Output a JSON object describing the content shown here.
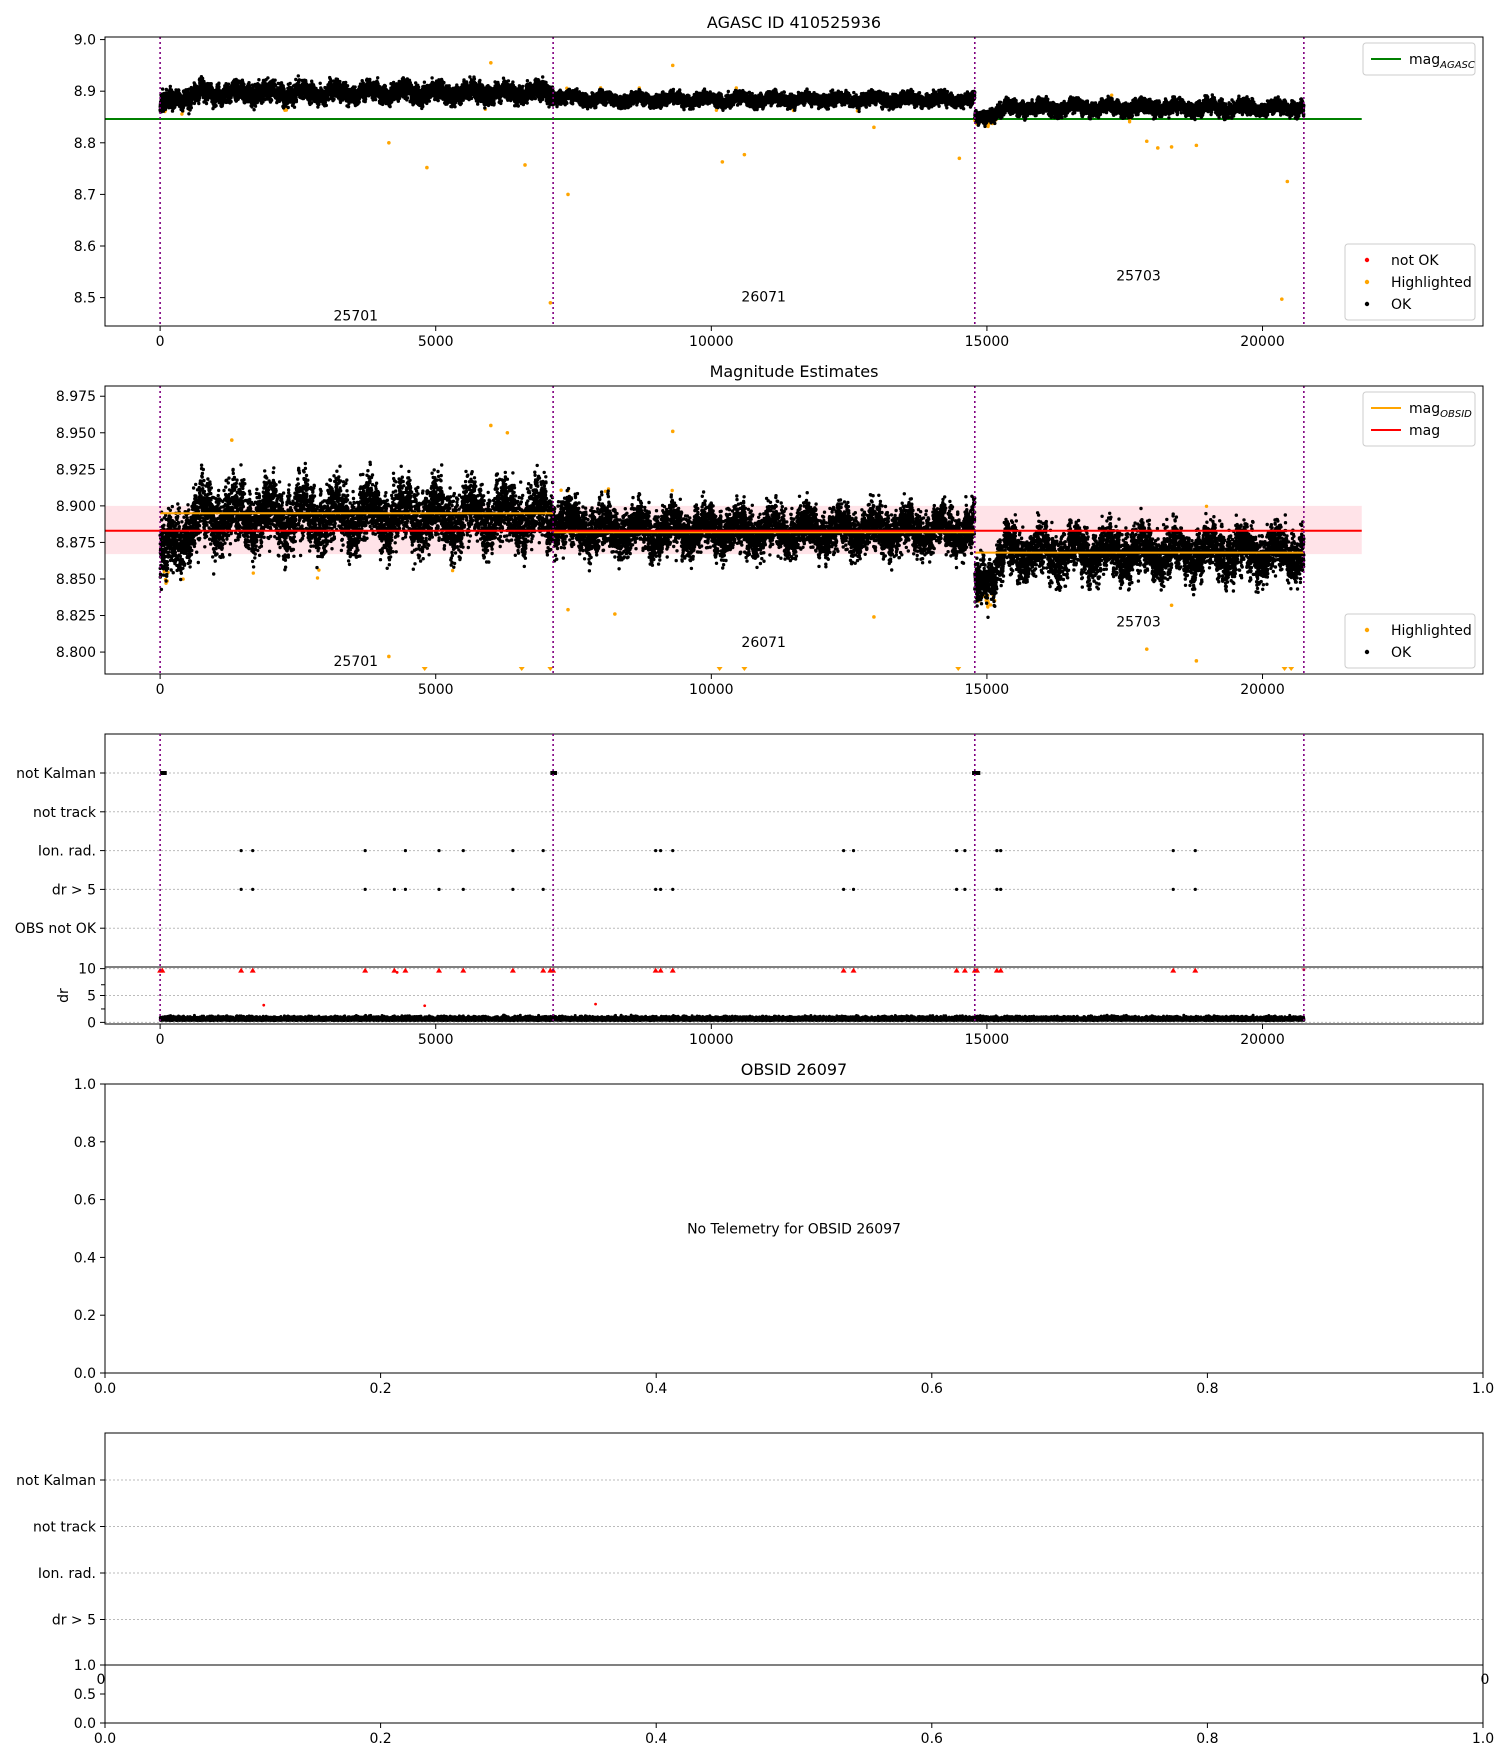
{
  "figure": {
    "title": "AGASC ID 410525936"
  },
  "colors": {
    "ok": "#000000",
    "highlighted": "#ffa500",
    "not_ok": "#ff0000",
    "agasc_line": "#008000",
    "obsid_line": "#ffa500",
    "mag_line": "#ff0000",
    "mag_band": "#ffc0cb",
    "boundary": "#800080"
  },
  "chart_data": [
    {
      "id": "panel1",
      "type": "scatter",
      "title": "AGASC ID 410525936",
      "xlim": [
        -1000,
        24000
      ],
      "ylim": [
        8.445,
        9.005
      ],
      "xticks": [
        0,
        5000,
        10000,
        15000,
        20000
      ],
      "xtick_labels": [
        "0",
        "5000",
        "10000",
        "15000",
        "20000"
      ],
      "yticks": [
        8.5,
        8.6,
        8.7,
        8.8,
        8.9,
        9.0
      ],
      "ytick_labels": [
        "8.5",
        "8.6",
        "8.7",
        "8.8",
        "8.9",
        "9.0"
      ],
      "boundaries": [
        0,
        7130,
        14780,
        20750
      ],
      "obsid_labels": [
        {
          "text": "25701",
          "x": 3550,
          "y": 8.465
        },
        {
          "text": "26071",
          "x": 10950,
          "y": 8.502
        },
        {
          "text": "25703",
          "x": 17750,
          "y": 8.543
        }
      ],
      "agasc_mag": 8.846,
      "segments": [
        {
          "x0": 0,
          "x1": 7130,
          "mean": 8.897,
          "start": 8.872,
          "noise": 0.012
        },
        {
          "x0": 7130,
          "x1": 14780,
          "mean": 8.884,
          "start": 8.89,
          "noise": 0.008
        },
        {
          "x0": 14780,
          "x1": 20750,
          "mean": 8.868,
          "start": 8.842,
          "noise": 0.009
        }
      ],
      "outliers": [
        [
          4150,
          8.8
        ],
        [
          4840,
          8.752
        ],
        [
          6620,
          8.757
        ],
        [
          7400,
          8.7
        ],
        [
          10200,
          8.763
        ],
        [
          10600,
          8.777
        ],
        [
          12950,
          8.83
        ],
        [
          14500,
          8.77
        ],
        [
          17900,
          8.803
        ],
        [
          18100,
          8.79
        ],
        [
          18350,
          8.792
        ],
        [
          18800,
          8.795
        ],
        [
          20450,
          8.725
        ],
        [
          20350,
          8.497
        ],
        [
          7080,
          8.49
        ],
        [
          9300,
          8.95
        ],
        [
          6000,
          8.955
        ]
      ],
      "legends": [
        {
          "position": "top-right",
          "entries": [
            {
              "label": "mag",
              "sub": "AGASC",
              "kind": "line",
              "color": "#008000"
            }
          ]
        },
        {
          "position": "bottom-right",
          "entries": [
            {
              "label": "not OK",
              "kind": "dot",
              "color": "#ff0000"
            },
            {
              "label": "Highlighted",
              "kind": "dot",
              "color": "#ffa500"
            },
            {
              "label": "OK",
              "kind": "dot",
              "color": "#000000"
            }
          ]
        }
      ]
    },
    {
      "id": "panel2",
      "type": "scatter",
      "title": "Magnitude Estimates",
      "xlim": [
        -1000,
        24000
      ],
      "ylim": [
        8.785,
        8.982
      ],
      "xticks": [
        0,
        5000,
        10000,
        15000,
        20000
      ],
      "xtick_labels": [
        "0",
        "5000",
        "10000",
        "15000",
        "20000"
      ],
      "yticks": [
        8.8,
        8.825,
        8.85,
        8.875,
        8.9,
        8.925,
        8.95,
        8.975
      ],
      "ytick_labels": [
        "8.800",
        "8.825",
        "8.850",
        "8.875",
        "8.900",
        "8.925",
        "8.950",
        "8.975"
      ],
      "boundaries": [
        0,
        7130,
        14780,
        20750
      ],
      "obsid_labels": [
        {
          "text": "25701",
          "x": 3550,
          "y": 8.794
        },
        {
          "text": "26071",
          "x": 10950,
          "y": 8.807
        },
        {
          "text": "25703",
          "x": 17750,
          "y": 8.821
        }
      ],
      "mag": 8.883,
      "mag_band": [
        8.867,
        8.9
      ],
      "obsid_mags": [
        {
          "x0": 0,
          "x1": 7130,
          "mag": 8.895
        },
        {
          "x0": 7130,
          "x1": 14780,
          "mag": 8.882
        },
        {
          "x0": 14780,
          "x1": 20750,
          "mag": 8.868
        }
      ],
      "segments": [
        {
          "x0": 0,
          "x1": 7130,
          "mean": 8.893,
          "start": 8.862,
          "noise": 0.014
        },
        {
          "x0": 7130,
          "x1": 14780,
          "mean": 8.883,
          "start": 8.89,
          "noise": 0.01
        },
        {
          "x0": 14780,
          "x1": 20750,
          "mean": 8.868,
          "start": 8.84,
          "noise": 0.011
        }
      ],
      "outliers": [
        [
          4150,
          8.797
        ],
        [
          7400,
          8.829
        ],
        [
          8250,
          8.826
        ],
        [
          12950,
          8.824
        ],
        [
          17900,
          8.802
        ],
        [
          18350,
          8.832
        ],
        [
          18800,
          8.794
        ],
        [
          9300,
          8.951
        ],
        [
          6000,
          8.955
        ],
        [
          6300,
          8.95
        ],
        [
          1300,
          8.945
        ]
      ],
      "clipped_x": [
        4800,
        6560,
        7080,
        10150,
        10600,
        14480,
        20400,
        20520
      ],
      "legends": [
        {
          "position": "top-right",
          "entries": [
            {
              "label": "mag",
              "sub": "OBSID",
              "kind": "line",
              "color": "#ffa500"
            },
            {
              "label": "mag",
              "kind": "line",
              "color": "#ff0000"
            }
          ]
        },
        {
          "position": "bottom-right",
          "entries": [
            {
              "label": "Highlighted",
              "kind": "dot",
              "color": "#ffa500"
            },
            {
              "label": "OK",
              "kind": "dot",
              "color": "#000000"
            }
          ]
        }
      ]
    },
    {
      "id": "panel3",
      "type": "scatter",
      "xlim": [
        -1000,
        24000
      ],
      "categories": [
        "not Kalman",
        "not track",
        "Ion. rad.",
        "dr > 5",
        "OBS not OK"
      ],
      "boundaries": [
        0,
        7130,
        14780,
        20750
      ],
      "flags": {
        "not Kalman": [
          [
            0,
            120
          ],
          [
            7080,
            7200
          ],
          [
            14730,
            14880
          ]
        ],
        "not track": [],
        "Ion. rad.": [
          1470,
          1680,
          3720,
          4450,
          5060,
          5500,
          6400,
          6950,
          8990,
          9080,
          9300,
          12400,
          12580,
          14450,
          14600,
          15180,
          15250,
          18380,
          18780
        ],
        "dr > 5": [
          1470,
          1680,
          3720,
          4250,
          4450,
          5060,
          5500,
          6400,
          6950,
          8990,
          9080,
          9300,
          12400,
          12580,
          14450,
          14600,
          15180,
          15250,
          18380,
          18780
        ],
        "OBS not OK": []
      }
    },
    {
      "id": "panel3dr",
      "type": "scatter",
      "ylabel": "dr",
      "xlim": [
        -1000,
        24000
      ],
      "ylim": [
        -0.3,
        10.3
      ],
      "xticks": [
        0,
        5000,
        10000,
        15000,
        20000
      ],
      "xtick_labels": [
        "0",
        "5000",
        "10000",
        "15000",
        "20000"
      ],
      "yticks": [
        0,
        5,
        10
      ],
      "ytick_labels": [
        "0",
        "5",
        "10"
      ],
      "boundaries": [
        0,
        7130,
        14780,
        20750
      ],
      "clipped_x": [
        0,
        40,
        1470,
        1680,
        3720,
        4250,
        4450,
        5060,
        5500,
        6400,
        6950,
        7080,
        7130,
        8990,
        9080,
        9300,
        12400,
        12580,
        14450,
        14600,
        14780,
        14820,
        15180,
        15250,
        18380,
        18780
      ],
      "outliers": [
        [
          1880,
          3.2
        ],
        [
          4800,
          3.1
        ],
        [
          7900,
          3.4
        ],
        [
          4300,
          9.3
        ],
        [
          20750,
          9.8
        ]
      ]
    },
    {
      "id": "panel4",
      "type": "scatter",
      "title": "OBSID 26097",
      "xlim": [
        0,
        1
      ],
      "ylim": [
        0,
        1
      ],
      "xticks": [
        0,
        0.2,
        0.4,
        0.6,
        0.8,
        1.0
      ],
      "xtick_labels": [
        "0.0",
        "0.2",
        "0.4",
        "0.6",
        "0.8",
        "1.0"
      ],
      "yticks": [
        0,
        0.2,
        0.4,
        0.6,
        0.8,
        1.0
      ],
      "ytick_labels": [
        "0.0",
        "0.2",
        "0.4",
        "0.6",
        "0.8",
        "1.0"
      ],
      "annotation": "No Telemetry for OBSID 26097"
    },
    {
      "id": "panel5",
      "type": "scatter",
      "categories": [
        "not Kalman",
        "not track",
        "Ion. rad.",
        "dr > 5"
      ],
      "overlap_tick_labels": [
        "0",
        "1.0"
      ]
    },
    {
      "id": "panel5b",
      "type": "scatter",
      "xlim": [
        0,
        1
      ],
      "ylim": [
        0,
        1
      ],
      "xticks": [
        0,
        0.2,
        0.4,
        0.6,
        0.8,
        1.0
      ],
      "xtick_labels": [
        "0.0",
        "0.2",
        "0.4",
        "0.6",
        "0.8",
        "1.0"
      ],
      "yticks": [
        0,
        0.5,
        1.0
      ],
      "ytick_labels": [
        "0.0",
        "0.5",
        "1.0"
      ]
    }
  ]
}
